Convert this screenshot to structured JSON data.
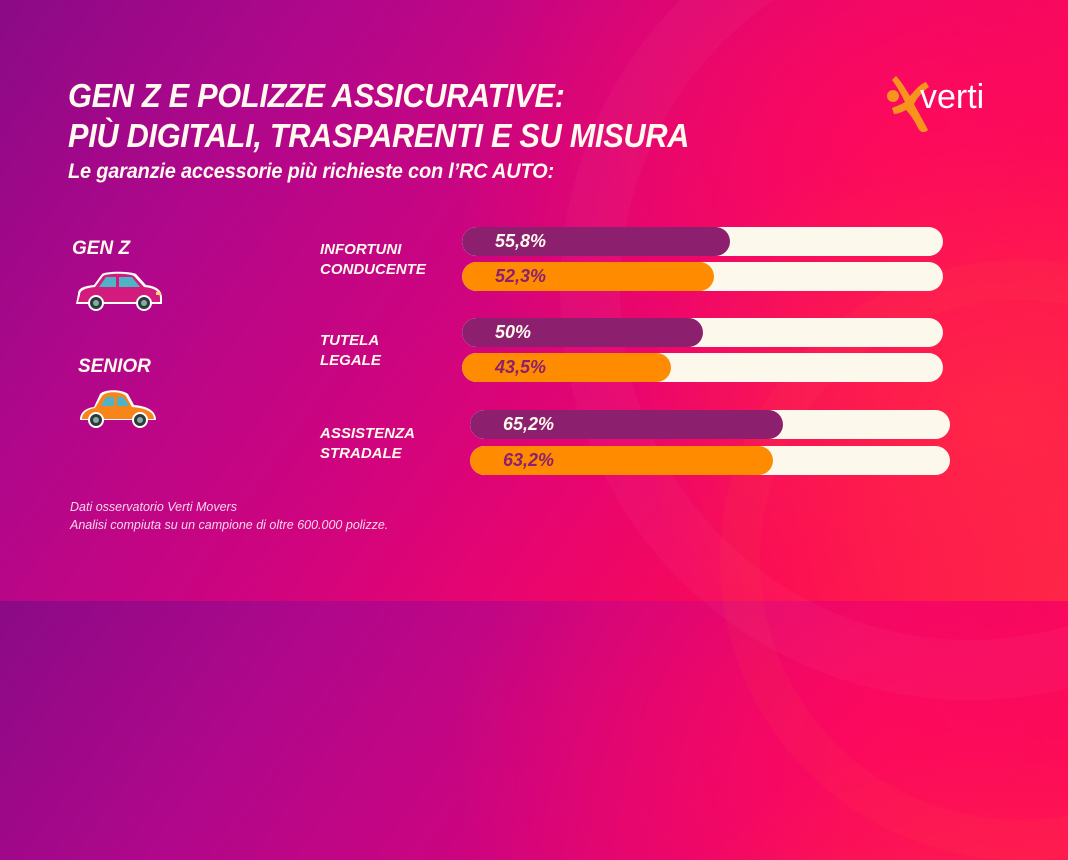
{
  "header": {
    "title_line1": "GEN Z E POLIZZE ASSICURATIVE:",
    "title_line2": "PIÙ DIGITALI, TRASPARENTI E SU MISURA",
    "subtitle": "Le garanzie accessorie più richieste con l’RC AUTO:"
  },
  "logo": {
    "text": "verti",
    "icon": "verti-figure-icon",
    "color": "#f7941d"
  },
  "legend": [
    {
      "label": "GEN Z",
      "icon": "modern-car-icon",
      "color": "#8c1f6e"
    },
    {
      "label": "SENIOR",
      "icon": "vintage-car-icon",
      "color": "#ff8c00"
    }
  ],
  "colors": {
    "genz": "#8c1f6e",
    "senior": "#ff8c00",
    "track": "#fdf8ec",
    "genz_text": "#fff9ee",
    "senior_text": "#8c1f6e"
  },
  "chart_data": {
    "type": "bar",
    "orientation": "horizontal",
    "title": "Le garanzie accessorie più richieste con l’RC AUTO:",
    "categories": [
      {
        "line1": "INFORTUNI",
        "line2": "CONDUCENTE"
      },
      {
        "line1": "TUTELA",
        "line2": "LEGALE"
      },
      {
        "line1": "ASSISTENZA",
        "line2": "STRADALE"
      }
    ],
    "series": [
      {
        "name": "GEN Z",
        "values": [
          55.8,
          50,
          65.2
        ],
        "labels": [
          "55,8%",
          "50%",
          "65,2%"
        ]
      },
      {
        "name": "SENIOR",
        "values": [
          52.3,
          43.5,
          63.2
        ],
        "labels": [
          "52,3%",
          "43,5%",
          "63,2%"
        ]
      }
    ],
    "xlim": [
      0,
      100
    ],
    "unit": "%",
    "grid": false,
    "legend_position": "left"
  },
  "footnote": {
    "line1": "Dati osservatorio Verti Movers",
    "line2": "Analisi compiuta su un campione di oltre 600.000 polizze."
  }
}
